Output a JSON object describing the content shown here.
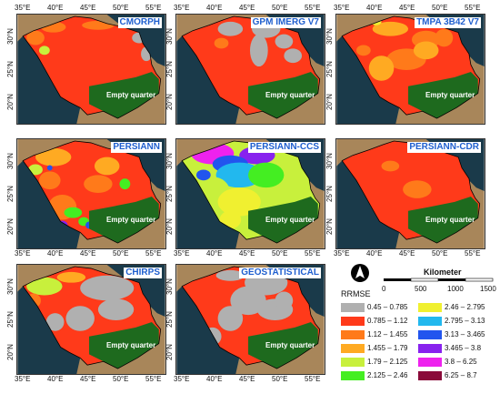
{
  "panels": [
    {
      "title": "CMORPH",
      "empty_quarter": "Empty quarter"
    },
    {
      "title": "GPM IMERG V7",
      "empty_quarter": "Empty quarter"
    },
    {
      "title": "TMPA 3B42 V7",
      "empty_quarter": "Empty quarter"
    },
    {
      "title": "PERSIANN",
      "empty_quarter": "Empty quarter"
    },
    {
      "title": "PERSIANN-CCS",
      "empty_quarter": "Empty quarter"
    },
    {
      "title": "PERSIANN-CDR",
      "empty_quarter": "Empty quarter"
    },
    {
      "title": "CHIRPS",
      "empty_quarter": "Empty quarter"
    },
    {
      "title": "GEOSTATISTICAL",
      "empty_quarter": "Empty quarter"
    }
  ],
  "axes": {
    "lon_ticks": [
      "35°E",
      "40°E",
      "45°E",
      "50°E",
      "55°E"
    ],
    "lat_ticks": [
      "30°N",
      "25°N",
      "20°N"
    ]
  },
  "scale_bar": {
    "unit": "Kilometer",
    "ticks": [
      "0",
      "500",
      "1000",
      "1500"
    ]
  },
  "legend": {
    "title": "RRMSE",
    "items": [
      {
        "label": "0.45 – 0.785",
        "color": "#b0b0b0"
      },
      {
        "label": "0.785 – 1.12",
        "color": "#ff3a1a"
      },
      {
        "label": "1.12 – 1.455",
        "color": "#ff7a1a"
      },
      {
        "label": "1.455 – 1.79",
        "color": "#ffaa22"
      },
      {
        "label": "1.79 – 2.125",
        "color": "#c8f03c"
      },
      {
        "label": "2.125 – 2.46",
        "color": "#44ee22"
      },
      {
        "label": "2.46 – 2.795",
        "color": "#f0f030"
      },
      {
        "label": "2.795 – 3.13",
        "color": "#22b8ee"
      },
      {
        "label": "3.13 – 3.465",
        "color": "#2255ee"
      },
      {
        "label": "3.465 – 3.8",
        "color": "#8822ee"
      },
      {
        "label": "3.8 – 6.25",
        "color": "#ee22ee"
      },
      {
        "label": "6.25 – 8.7",
        "color": "#8a0a3a"
      }
    ]
  },
  "colors": {
    "empty_quarter": "#1e6a1e",
    "terrain": "#a8865a",
    "sea": "#1a3a4a"
  }
}
